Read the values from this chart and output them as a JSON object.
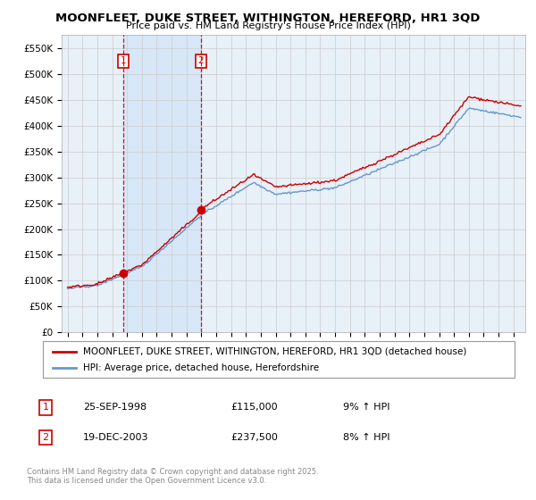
{
  "title": "MOONFLEET, DUKE STREET, WITHINGTON, HEREFORD, HR1 3QD",
  "subtitle": "Price paid vs. HM Land Registry's House Price Index (HPI)",
  "legend_line1": "MOONFLEET, DUKE STREET, WITHINGTON, HEREFORD, HR1 3QD (detached house)",
  "legend_line2": "HPI: Average price, detached house, Herefordshire",
  "sale1_label": "1",
  "sale1_date": "25-SEP-1998",
  "sale1_price": "£115,000",
  "sale1_hpi": "9% ↑ HPI",
  "sale2_label": "2",
  "sale2_date": "19-DEC-2003",
  "sale2_price": "£237,500",
  "sale2_hpi": "8% ↑ HPI",
  "sale1_x": 1998.73,
  "sale1_y": 115000,
  "sale2_x": 2003.96,
  "sale2_y": 237500,
  "vline1_x": 1998.73,
  "vline2_x": 2003.96,
  "red_line_color": "#cc0000",
  "blue_line_color": "#6699cc",
  "plot_bg_color": "#e8f0f8",
  "background_color": "#ffffff",
  "grid_color": "#cccccc",
  "shade_color": "#d0e4f7",
  "footer_text": "Contains HM Land Registry data © Crown copyright and database right 2025.\nThis data is licensed under the Open Government Licence v3.0.",
  "ylim": [
    0,
    575000
  ],
  "yticks": [
    0,
    50000,
    100000,
    150000,
    200000,
    250000,
    300000,
    350000,
    400000,
    450000,
    500000,
    550000
  ],
  "xlim_start": 1994.6,
  "xlim_end": 2025.8
}
